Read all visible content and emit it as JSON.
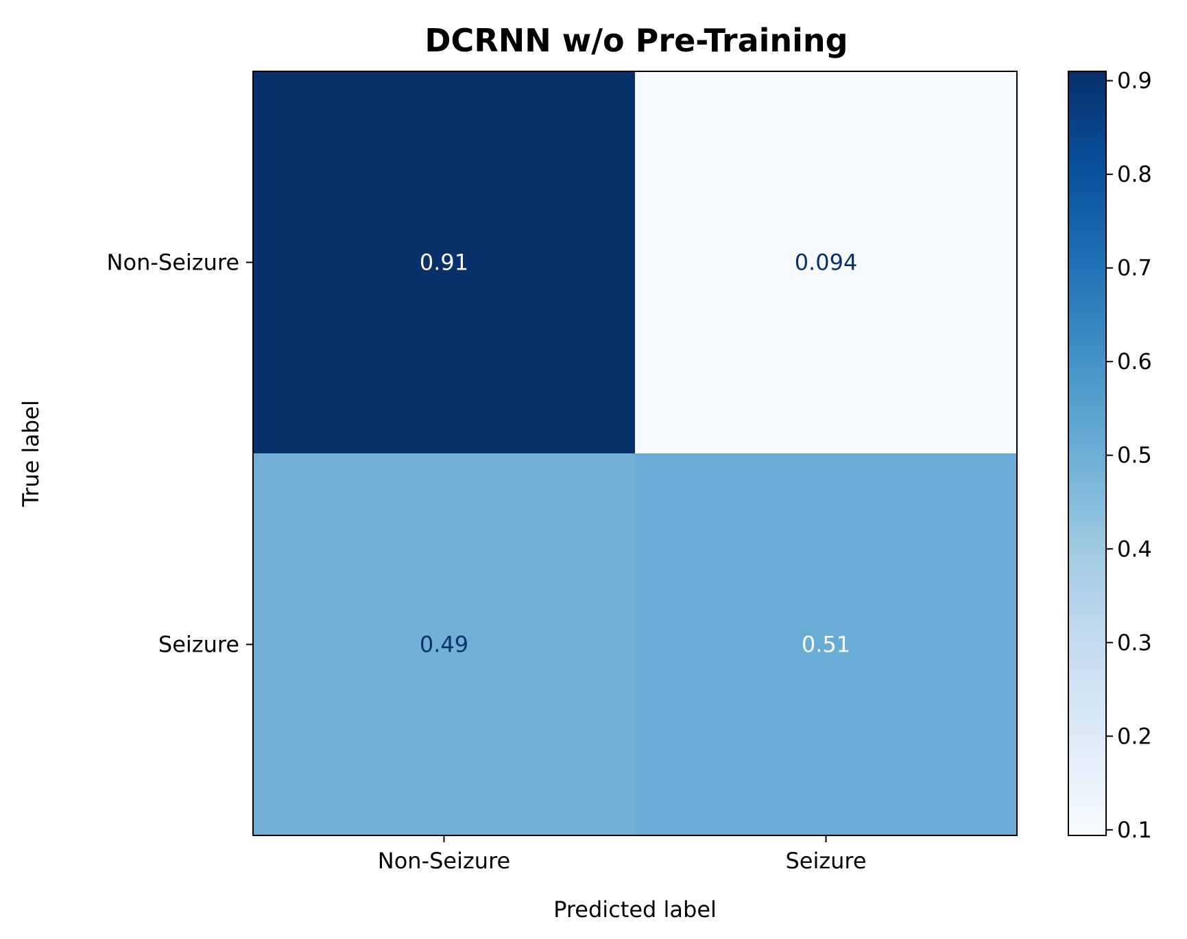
{
  "chart_data": {
    "type": "heatmap",
    "title": "DCRNN w/o Pre-Training",
    "xlabel": "Predicted label",
    "ylabel": "True label",
    "x_categories": [
      "Non-Seizure",
      "Seizure"
    ],
    "y_categories": [
      "Non-Seizure",
      "Seizure"
    ],
    "values": [
      [
        0.91,
        0.094
      ],
      [
        0.49,
        0.51
      ]
    ],
    "value_labels": [
      [
        "0.91",
        "0.094"
      ],
      [
        "0.49",
        "0.51"
      ]
    ],
    "colorbar": {
      "ticks": [
        "0.1",
        "0.2",
        "0.3",
        "0.4",
        "0.5",
        "0.6",
        "0.7",
        "0.8",
        "0.9"
      ],
      "range": [
        0.094,
        0.91
      ]
    },
    "colormap": "Blues",
    "colors": {
      "low": "#f7fbff",
      "high": "#08306b",
      "text_light": "#ffffff",
      "text_dark": "#08306b"
    }
  }
}
